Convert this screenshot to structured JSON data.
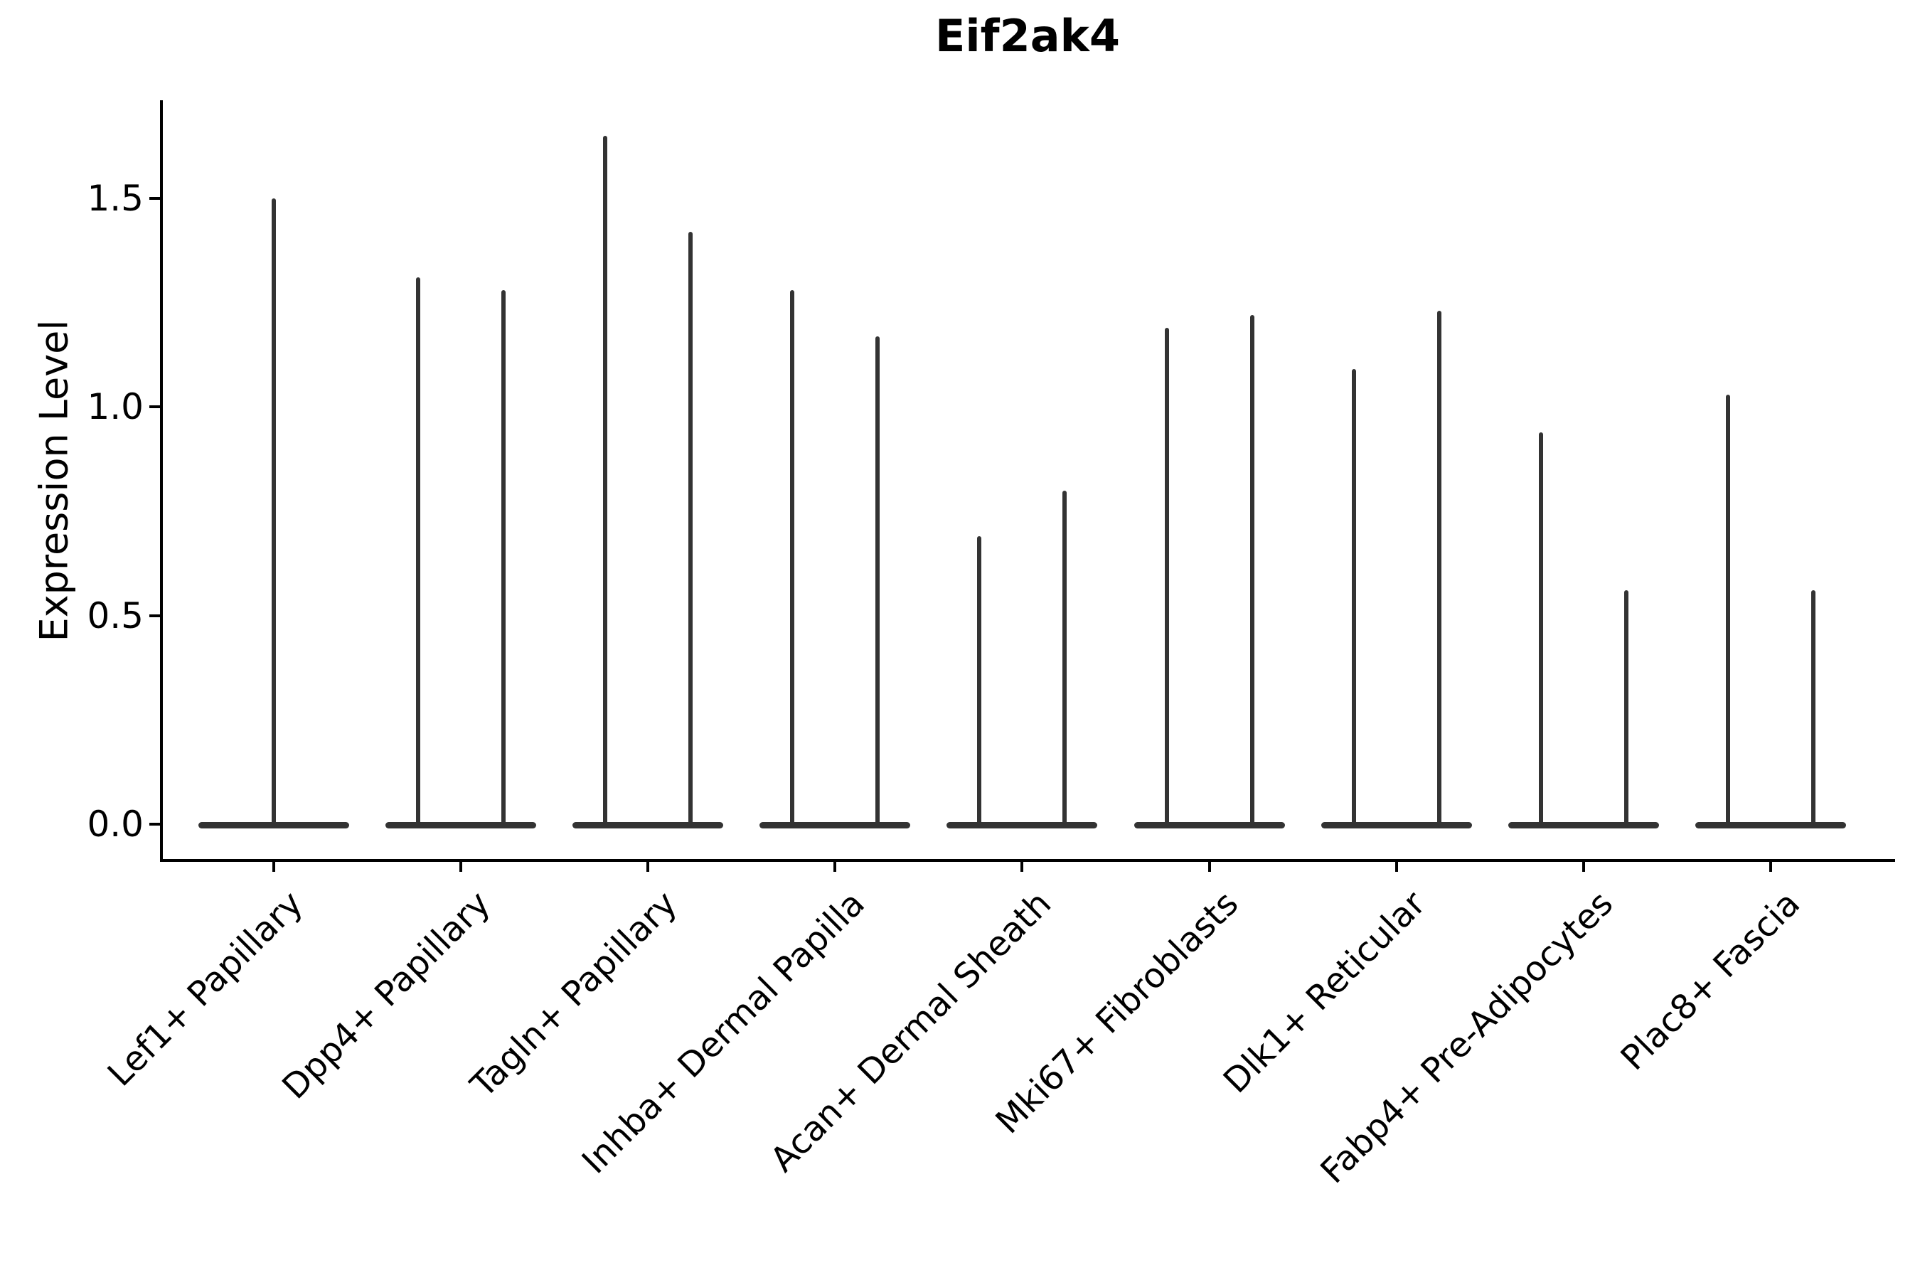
{
  "figure": {
    "background": "#ffffff"
  },
  "chart_data": {
    "type": "violin",
    "title": "Eif2ak4",
    "ylabel": "Expression Level",
    "legend": "none",
    "grid": false,
    "y_axis": {
      "range": [
        -0.09,
        1.74
      ],
      "ticks": [
        {
          "label": "0.0",
          "value": 0.0
        },
        {
          "label": "0.5",
          "value": 0.5
        },
        {
          "label": "1.0",
          "value": 1.0
        },
        {
          "label": "1.5",
          "value": 1.5
        }
      ]
    },
    "x_axis": {
      "label_rotation_deg": 45
    },
    "categories": [
      {
        "label": "Lef1+ Papillary",
        "peaks": [
          1.5
        ]
      },
      {
        "label": "Dpp4+ Papillary",
        "peaks": [
          1.31,
          1.28
        ]
      },
      {
        "label": "Tagln+ Papillary",
        "peaks": [
          1.65,
          1.42
        ]
      },
      {
        "label": "Inhba+ Dermal Papilla",
        "peaks": [
          1.28,
          1.17
        ]
      },
      {
        "label": "Acan+ Dermal Sheath",
        "peaks": [
          0.69,
          0.8
        ]
      },
      {
        "label": "Mki67+ Fibroblasts",
        "peaks": [
          1.19,
          1.22
        ]
      },
      {
        "label": "Dlk1+ Reticular",
        "peaks": [
          1.09,
          1.23
        ]
      },
      {
        "label": "Fabp4+ Pre-Adipocytes",
        "peaks": [
          0.94,
          0.56
        ]
      },
      {
        "label": "Plac8+ Fascia",
        "peaks": [
          1.03,
          0.56
        ]
      }
    ],
    "style": {
      "violin_color": "#333333",
      "axis_color": "#000000",
      "text_color": "#000000"
    }
  }
}
